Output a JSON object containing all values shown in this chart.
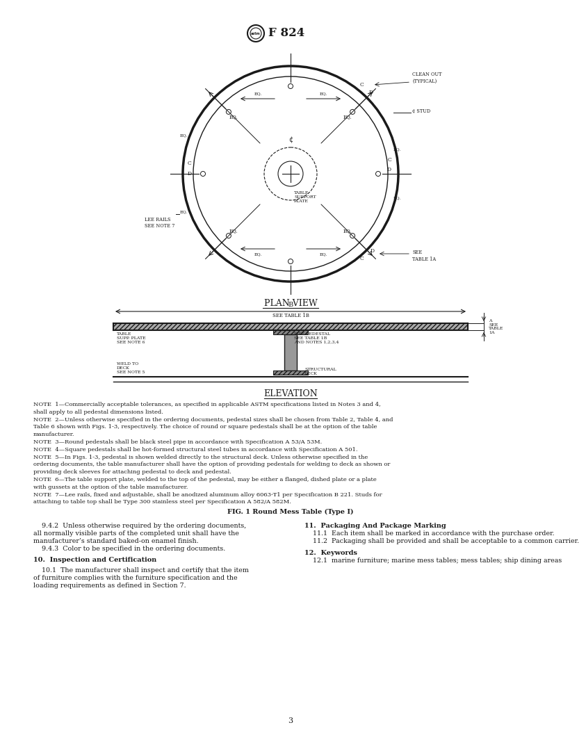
{
  "bg_color": "#ffffff",
  "text_color": "#1a1a1a",
  "page_width": 8.16,
  "page_height": 10.56,
  "title_logo": "F 824",
  "plan_view_label": "PLAN VIEW",
  "elevation_label": "ELEVATION",
  "fig_caption": "FIG. 1 Round Mess Table (Type I)",
  "notes": [
    "NOTE  1—Commercially acceptable tolerances, as specified in applicable ASTM specifications listed in Notes 3 and 4, shall apply to all pedestal dimensions listed.",
    "NOTE  2—Unless otherwise specified in the ordering documents, pedestal sizes shall be chosen from Table 2, Table 4, and Table 6 shown with Figs. 1-3, respectively. The choice of round or square pedestals shall be at the option of the table manufacturer.",
    "NOTE  3—Round pedestals shall be black steel pipe in accordance with Specification A 53/A 53M.",
    "NOTE  4—Square pedestals shall be hot-formed structural steel tubes in accordance with Specification A 501.",
    "NOTE  5—In Figs. 1-3, pedestal is shown welded directly to the structural deck. Unless otherwise specified in the ordering documents, the table manufacturer shall have the option of providing pedestals for welding to deck as shown or providing deck sleeves for attaching pedestal to deck and pedestal.",
    "NOTE  6—The table support plate, welded to the top of the pedestal, may be either a flanged, dished plate or a plate with gussets at the option of the table manufacturer.",
    "NOTE  7—Lee rails, fixed and adjustable, shall be anodized aluminum alloy 6063-T1 per Specification B 221. Studs for attaching to table top shall be Type 300 stainless steel per Specification A 582/A 582M."
  ],
  "left_col": [
    "    9.4.2  Unless otherwise required by the ordering documents,",
    "all normally visible parts of the completed unit shall have the",
    "manufacturer’s standard baked-on enamel finish.",
    "    9.4.3  Color to be specified in the ordering documents.",
    "",
    "10.  Inspection and Certification",
    "",
    "    10.1  The manufacturer shall inspect and certify that the item",
    "of furniture complies with the furniture specification and the",
    "loading requirements as defined in Section 7."
  ],
  "right_col_sections": [
    {
      "heading": "11.  Packaging And Package Marking",
      "body": [
        "    11.1  Each item shall be marked in accordance with the purchase order.",
        "    11.2  Packaging shall be provided and shall be acceptable to a common carrier."
      ]
    },
    {
      "heading": "12.  Keywords",
      "body": [
        "    12.1  marine furniture; marine mess tables; mess tables; ship dining areas"
      ]
    }
  ],
  "page_number": "3"
}
